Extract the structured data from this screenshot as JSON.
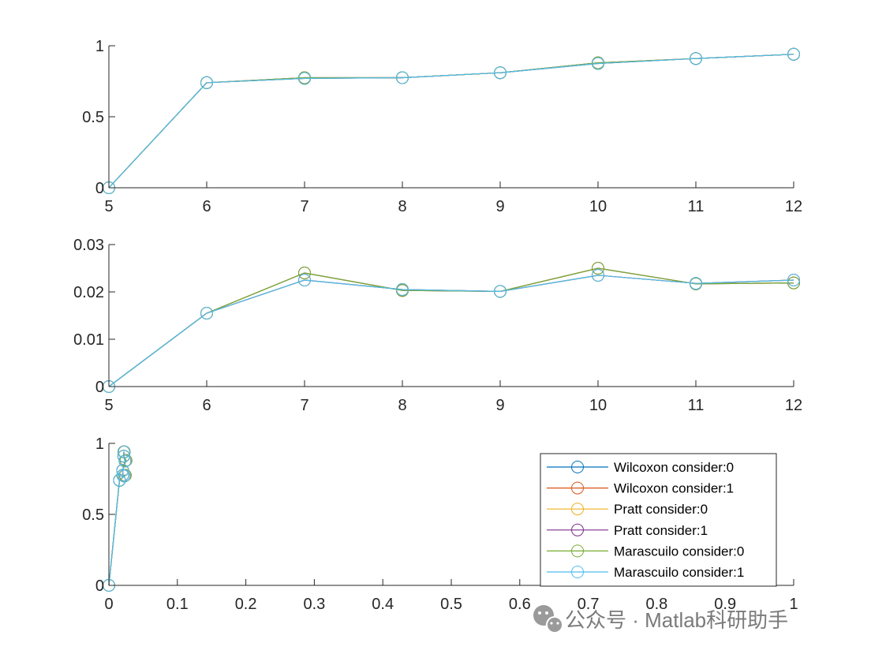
{
  "chart_data": [
    {
      "type": "line",
      "x": [
        5,
        6,
        7,
        8,
        9,
        10,
        11,
        12
      ],
      "xlim": [
        5,
        12
      ],
      "ylim": [
        0,
        1
      ],
      "xticks": [
        "5",
        "6",
        "7",
        "8",
        "9",
        "10",
        "11",
        "12"
      ],
      "yticks": [
        "0",
        "0.5",
        "1"
      ],
      "grid": false,
      "series": [
        {
          "name": "Wilcoxon consider:0",
          "color": "#0072BD",
          "values": [
            0,
            0.74,
            0.77,
            0.775,
            0.81,
            0.875,
            0.91,
            0.94
          ]
        },
        {
          "name": "Wilcoxon consider:1",
          "color": "#D95319",
          "values": [
            0,
            0.74,
            0.77,
            0.775,
            0.81,
            0.875,
            0.91,
            0.94
          ]
        },
        {
          "name": "Pratt consider:0",
          "color": "#EDB120",
          "values": [
            0,
            0.74,
            0.775,
            0.775,
            0.81,
            0.88,
            0.91,
            0.94
          ]
        },
        {
          "name": "Pratt consider:1",
          "color": "#7E2F8E",
          "values": [
            0,
            0.74,
            0.775,
            0.775,
            0.81,
            0.88,
            0.91,
            0.94
          ]
        },
        {
          "name": "Marascuilo consider:0",
          "color": "#77AC30",
          "values": [
            0,
            0.74,
            0.775,
            0.775,
            0.81,
            0.88,
            0.91,
            0.94
          ]
        },
        {
          "name": "Marascuilo consider:1",
          "color": "#4DBEEE",
          "values": [
            0,
            0.74,
            0.77,
            0.775,
            0.81,
            0.875,
            0.91,
            0.94
          ]
        }
      ]
    },
    {
      "type": "line",
      "x": [
        5,
        6,
        7,
        8,
        9,
        10,
        11,
        12
      ],
      "xlim": [
        5,
        12
      ],
      "ylim": [
        0,
        0.03
      ],
      "xticks": [
        "5",
        "6",
        "7",
        "8",
        "9",
        "10",
        "11",
        "12"
      ],
      "yticks": [
        "0",
        "0.01",
        "0.02",
        "0.03"
      ],
      "grid": false,
      "series": [
        {
          "name": "Wilcoxon consider:0",
          "color": "#0072BD",
          "values": [
            0,
            0.0155,
            0.0225,
            0.0205,
            0.0201,
            0.0235,
            0.0218,
            0.0225
          ]
        },
        {
          "name": "Wilcoxon consider:1",
          "color": "#D95319",
          "values": [
            0,
            0.0155,
            0.0225,
            0.0205,
            0.0201,
            0.0235,
            0.0218,
            0.0225
          ]
        },
        {
          "name": "Pratt consider:0",
          "color": "#EDB120",
          "values": [
            0,
            0.0155,
            0.024,
            0.0203,
            0.0201,
            0.025,
            0.0217,
            0.0219
          ]
        },
        {
          "name": "Pratt consider:1",
          "color": "#7E2F8E",
          "values": [
            0,
            0.0155,
            0.024,
            0.0203,
            0.0201,
            0.025,
            0.0217,
            0.0219
          ]
        },
        {
          "name": "Marascuilo consider:0",
          "color": "#77AC30",
          "values": [
            0,
            0.0155,
            0.024,
            0.0203,
            0.0201,
            0.025,
            0.0217,
            0.0219
          ]
        },
        {
          "name": "Marascuilo consider:1",
          "color": "#4DBEEE",
          "values": [
            0,
            0.0155,
            0.0225,
            0.0205,
            0.0201,
            0.0235,
            0.0218,
            0.0225
          ]
        }
      ]
    },
    {
      "type": "line",
      "xlim": [
        0,
        1
      ],
      "ylim": [
        0,
        1
      ],
      "xticks": [
        "0",
        "0.1",
        "0.2",
        "0.3",
        "0.4",
        "0.5",
        "0.6",
        "0.7",
        "0.8",
        "0.9",
        "1"
      ],
      "yticks": [
        "0",
        "0.5",
        "1"
      ],
      "grid": false,
      "legend": "inside bottom-right",
      "series": [
        {
          "name": "Wilcoxon consider:0",
          "color": "#0072BD",
          "x": [
            0,
            0.0155,
            0.0225,
            0.0205,
            0.0201,
            0.0235,
            0.0218,
            0.0225
          ],
          "y": [
            0,
            0.74,
            0.77,
            0.775,
            0.81,
            0.875,
            0.91,
            0.94
          ]
        },
        {
          "name": "Wilcoxon consider:1",
          "color": "#D95319",
          "x": [
            0,
            0.0155,
            0.0225,
            0.0205,
            0.0201,
            0.0235,
            0.0218,
            0.0225
          ],
          "y": [
            0,
            0.74,
            0.77,
            0.775,
            0.81,
            0.875,
            0.91,
            0.94
          ]
        },
        {
          "name": "Pratt consider:0",
          "color": "#EDB120",
          "x": [
            0,
            0.0155,
            0.024,
            0.0203,
            0.0201,
            0.025,
            0.0217,
            0.0219
          ],
          "y": [
            0,
            0.74,
            0.775,
            0.775,
            0.81,
            0.88,
            0.91,
            0.94
          ]
        },
        {
          "name": "Pratt consider:1",
          "color": "#7E2F8E",
          "x": [
            0,
            0.0155,
            0.024,
            0.0203,
            0.0201,
            0.025,
            0.0217,
            0.0219
          ],
          "y": [
            0,
            0.74,
            0.775,
            0.775,
            0.81,
            0.88,
            0.91,
            0.94
          ]
        },
        {
          "name": "Marascuilo consider:0",
          "color": "#77AC30",
          "x": [
            0,
            0.0155,
            0.024,
            0.0203,
            0.0201,
            0.025,
            0.0217,
            0.0219
          ],
          "y": [
            0,
            0.74,
            0.775,
            0.775,
            0.81,
            0.88,
            0.91,
            0.94
          ]
        },
        {
          "name": "Marascuilo consider:1",
          "color": "#4DBEEE",
          "x": [
            0,
            0.0155,
            0.0225,
            0.0205,
            0.0201,
            0.0235,
            0.0218,
            0.0225
          ],
          "y": [
            0,
            0.74,
            0.77,
            0.775,
            0.81,
            0.875,
            0.91,
            0.94
          ]
        }
      ]
    }
  ],
  "watermark": {
    "text": "公众号 · Matlab科研助手",
    "icon": "wechat-icon"
  }
}
